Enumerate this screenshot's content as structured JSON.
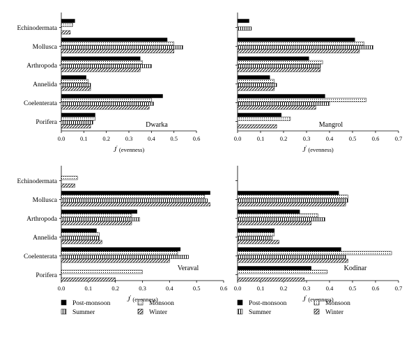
{
  "legend": {
    "items": [
      {
        "label": "Post-monsoon",
        "pattern": "solid"
      },
      {
        "label": "Monsoon",
        "pattern": "dotted"
      },
      {
        "label": "Summer",
        "pattern": "vertical"
      },
      {
        "label": "Winter",
        "pattern": "diagonal"
      }
    ]
  },
  "chart_data": [
    {
      "type": "bar",
      "orientation": "horizontal",
      "panel_label": "Dwarka",
      "xlabel_main": "J",
      "xlabel_sup": "′",
      "xlabel_rest": " (evenness)",
      "xlim": [
        0,
        0.6
      ],
      "xticks": [
        "0.0",
        "0.1",
        "0.2",
        "0.3",
        "0.4",
        "0.5",
        "0.6"
      ],
      "categories": [
        "Echinodermata",
        "Mollusca",
        "Arthropoda",
        "Annelida",
        "Coelenterata",
        "Porifera"
      ],
      "series": [
        {
          "name": "Post-monsoon",
          "values": [
            0.06,
            0.47,
            0.35,
            0.11,
            0.45,
            0.15
          ]
        },
        {
          "name": "Monsoon",
          "values": [
            0.05,
            0.5,
            0.36,
            0.12,
            0.4,
            0.15
          ]
        },
        {
          "name": "Summer",
          "values": [
            null,
            0.54,
            0.4,
            0.13,
            0.41,
            0.14
          ]
        },
        {
          "name": "Winter",
          "values": [
            0.04,
            0.5,
            0.35,
            0.13,
            0.39,
            0.13
          ]
        }
      ]
    },
    {
      "type": "bar",
      "orientation": "horizontal",
      "panel_label": "Mangrol",
      "xlabel_main": "J",
      "xlabel_sup": "′",
      "xlabel_rest": " (evenness)",
      "xlim": [
        0,
        0.7
      ],
      "xticks": [
        "0.0",
        "0.1",
        "0.2",
        "0.3",
        "0.4",
        "0.5",
        "0.6",
        "0.7"
      ],
      "categories": [
        "Echinodermata",
        "Mollusca",
        "Arthropoda",
        "Annelida",
        "Coelenterata",
        "Porifera"
      ],
      "series": [
        {
          "name": "Post-monsoon",
          "values": [
            0.05,
            0.51,
            0.31,
            0.14,
            0.38,
            0.19
          ]
        },
        {
          "name": "Monsoon",
          "values": [
            null,
            0.55,
            0.37,
            0.16,
            0.56,
            0.23
          ]
        },
        {
          "name": "Summer",
          "values": [
            0.06,
            0.59,
            0.36,
            0.17,
            0.4,
            null
          ]
        },
        {
          "name": "Winter",
          "values": [
            null,
            0.53,
            0.36,
            0.16,
            0.34,
            0.17
          ]
        }
      ]
    },
    {
      "type": "bar",
      "orientation": "horizontal",
      "panel_label": "Veraval",
      "xlabel_main": "J",
      "xlabel_sup": "′",
      "xlabel_rest": " (evenness)",
      "xlim": [
        0,
        0.6
      ],
      "xticks": [
        "0.0",
        "0.1",
        "0.2",
        "0.3",
        "0.4",
        "0.5",
        "0.6"
      ],
      "categories": [
        "Echinodermata",
        "Mollusca",
        "Arthropoda",
        "Annelida",
        "Coelenterata",
        "Porifera"
      ],
      "series": [
        {
          "name": "Post-monsoon",
          "values": [
            null,
            0.55,
            0.28,
            0.13,
            0.44,
            null
          ]
        },
        {
          "name": "Monsoon",
          "values": [
            0.06,
            0.53,
            0.26,
            0.14,
            0.43,
            0.3
          ]
        },
        {
          "name": "Summer",
          "values": [
            null,
            0.54,
            0.29,
            0.14,
            0.47,
            null
          ]
        },
        {
          "name": "Winter",
          "values": [
            0.05,
            0.55,
            0.26,
            0.15,
            0.4,
            0.2
          ]
        }
      ]
    },
    {
      "type": "bar",
      "orientation": "horizontal",
      "panel_label": "Kodinar",
      "xlabel_main": "J",
      "xlabel_sup": "′",
      "xlabel_rest": " (evenness)",
      "xlim": [
        0,
        0.7
      ],
      "xticks": [
        "0.0",
        "0.1",
        "0.2",
        "0.3",
        "0.4",
        "0.5",
        "0.6",
        "0.7"
      ],
      "categories": [
        "Echinodermata",
        "Mollusca",
        "Arthropoda",
        "Annelida",
        "Coelenterata",
        "Porifera"
      ],
      "series": [
        {
          "name": "Post-monsoon",
          "values": [
            null,
            0.44,
            0.27,
            0.16,
            0.45,
            0.32
          ]
        },
        {
          "name": "Monsoon",
          "values": [
            null,
            0.48,
            0.35,
            0.16,
            0.67,
            0.39
          ]
        },
        {
          "name": "Summer",
          "values": [
            null,
            0.48,
            0.38,
            0.15,
            0.47,
            null
          ]
        },
        {
          "name": "Winter",
          "values": [
            null,
            0.47,
            0.32,
            0.18,
            0.48,
            0.29
          ]
        }
      ]
    }
  ]
}
